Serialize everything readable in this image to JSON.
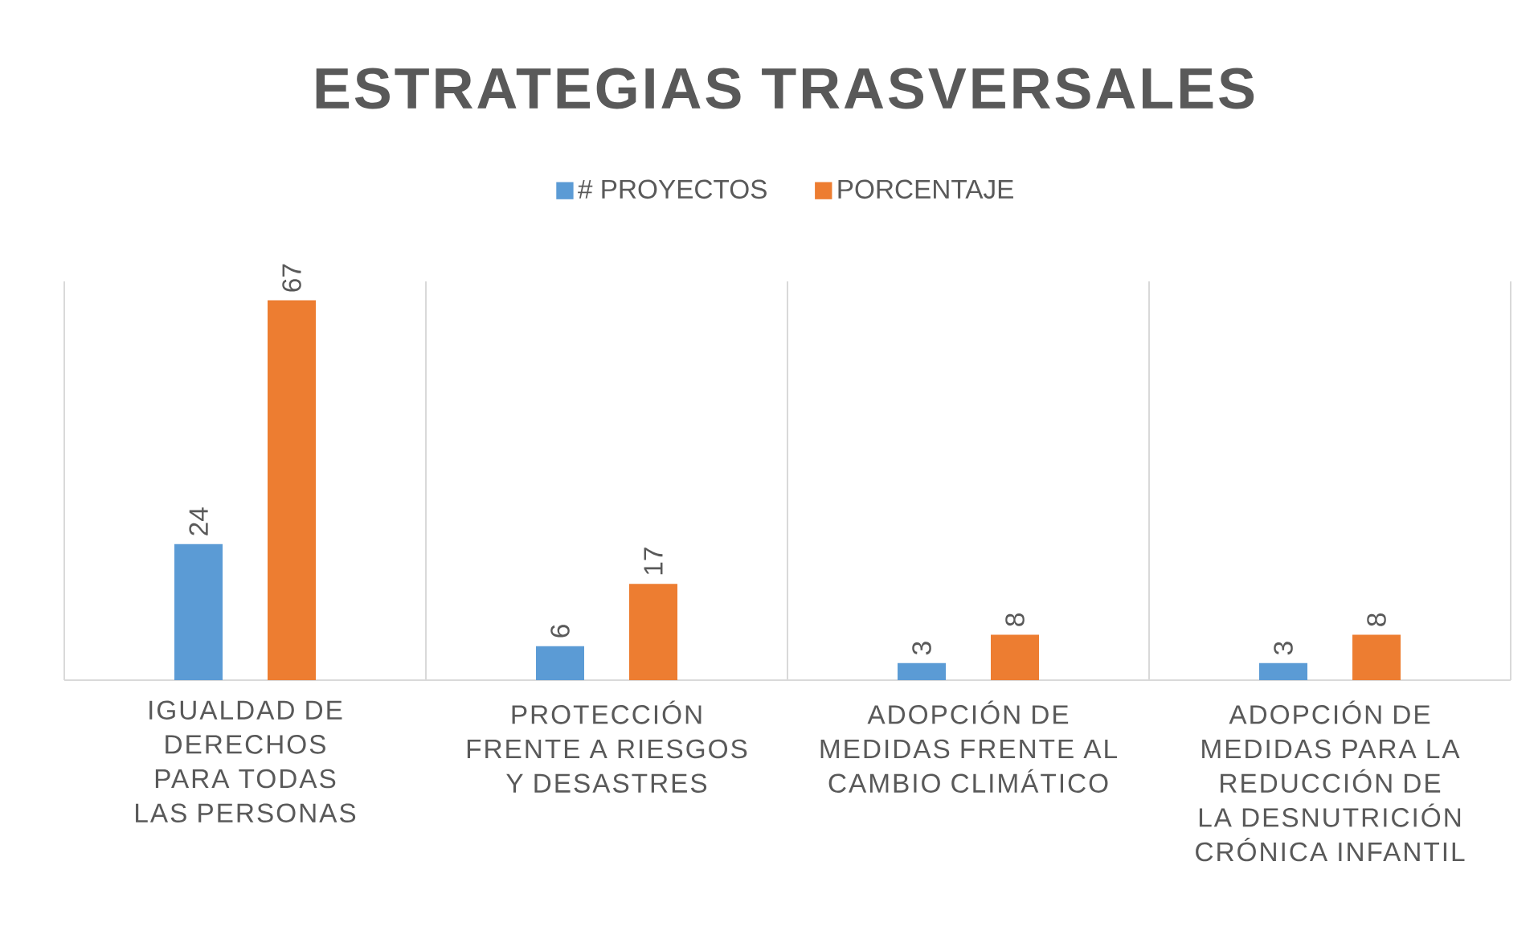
{
  "chart_data": {
    "type": "bar",
    "title": "ESTRATEGIAS TRASVERSALES",
    "categories": [
      "IGUALDAD DE DERECHOS PARA TODAS LAS PERSONAS",
      "PROTECCIÓN FRENTE A RIESGOS Y DESASTRES",
      "ADOPCIÓN DE MEDIDAS FRENTE AL CAMBIO CLIMÁTICO",
      "ADOPCIÓN DE MEDIDAS PARA LA REDUCCIÓN DE LA DESNUTRICIÓN CRÓNICA INFANTIL"
    ],
    "series": [
      {
        "name": "# PROYECTOS",
        "color": "#5b9bd5",
        "values": [
          24,
          6,
          3,
          3
        ]
      },
      {
        "name": "PORCENTAJE",
        "color": "#ed7d31",
        "values": [
          67,
          17,
          8,
          8
        ]
      }
    ],
    "data_labels": true,
    "grid": "x",
    "legend": "top"
  }
}
